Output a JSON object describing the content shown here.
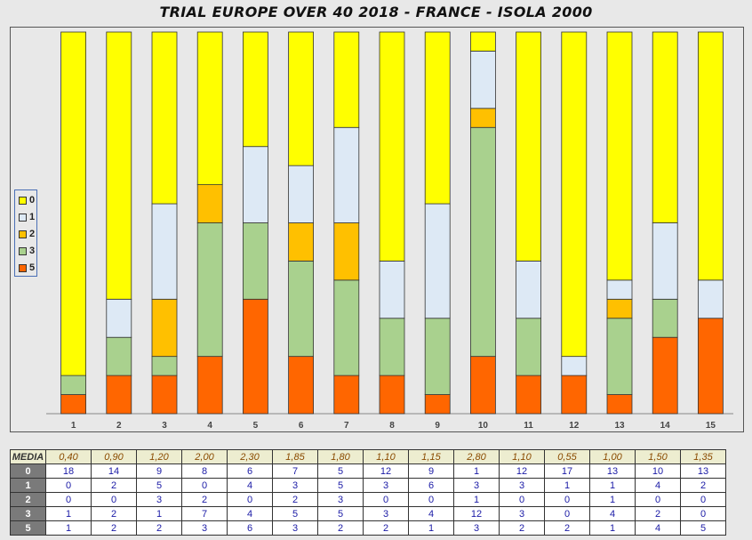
{
  "title": "TRIAL EUROPE OVER 40 2018 - FRANCE - ISOLA 2000",
  "colors": {
    "0": "#ffff00",
    "1": "#dde9f5",
    "2": "#ffc000",
    "3": "#a9d18e",
    "5": "#ff6600"
  },
  "chart_data": {
    "type": "bar",
    "stacked": true,
    "normalized": true,
    "title": "TRIAL EUROPE OVER 40 2018 - FRANCE - ISOLA 2000",
    "categories": [
      "1",
      "2",
      "3",
      "4",
      "5",
      "6",
      "7",
      "8",
      "9",
      "10",
      "11",
      "12",
      "13",
      "14",
      "15"
    ],
    "series": [
      {
        "name": "5",
        "values": [
          1,
          2,
          2,
          3,
          6,
          3,
          2,
          2,
          1,
          3,
          2,
          2,
          1,
          4,
          5
        ]
      },
      {
        "name": "3",
        "values": [
          1,
          2,
          1,
          7,
          4,
          5,
          5,
          3,
          4,
          12,
          3,
          0,
          4,
          2,
          0
        ]
      },
      {
        "name": "2",
        "values": [
          0,
          0,
          3,
          2,
          0,
          2,
          3,
          0,
          0,
          1,
          0,
          0,
          1,
          0,
          0
        ]
      },
      {
        "name": "1",
        "values": [
          0,
          2,
          5,
          0,
          4,
          3,
          5,
          3,
          6,
          3,
          3,
          1,
          1,
          4,
          2
        ]
      },
      {
        "name": "0",
        "values": [
          18,
          14,
          9,
          8,
          6,
          7,
          5,
          12,
          9,
          1,
          12,
          17,
          13,
          10,
          13
        ]
      }
    ],
    "legend": [
      "0",
      "1",
      "2",
      "3",
      "5"
    ],
    "legend_position": "left"
  },
  "table": {
    "media_label": "MEDIA",
    "media": [
      "0,40",
      "0,90",
      "1,20",
      "2,00",
      "2,30",
      "1,85",
      "1,80",
      "1,10",
      "1,15",
      "2,80",
      "1,10",
      "0,55",
      "1,00",
      "1,50",
      "1,35"
    ],
    "rows": [
      {
        "label": "0",
        "values": [
          "18",
          "14",
          "9",
          "8",
          "6",
          "7",
          "5",
          "12",
          "9",
          "1",
          "12",
          "17",
          "13",
          "10",
          "13"
        ]
      },
      {
        "label": "1",
        "values": [
          "0",
          "2",
          "5",
          "0",
          "4",
          "3",
          "5",
          "3",
          "6",
          "3",
          "3",
          "1",
          "1",
          "4",
          "2"
        ]
      },
      {
        "label": "2",
        "values": [
          "0",
          "0",
          "3",
          "2",
          "0",
          "2",
          "3",
          "0",
          "0",
          "1",
          "0",
          "0",
          "1",
          "0",
          "0"
        ]
      },
      {
        "label": "3",
        "values": [
          "1",
          "2",
          "1",
          "7",
          "4",
          "5",
          "5",
          "3",
          "4",
          "12",
          "3",
          "0",
          "4",
          "2",
          "0"
        ]
      },
      {
        "label": "5",
        "values": [
          "1",
          "2",
          "2",
          "3",
          "6",
          "3",
          "2",
          "2",
          "1",
          "3",
          "2",
          "2",
          "1",
          "4",
          "5"
        ]
      }
    ]
  }
}
